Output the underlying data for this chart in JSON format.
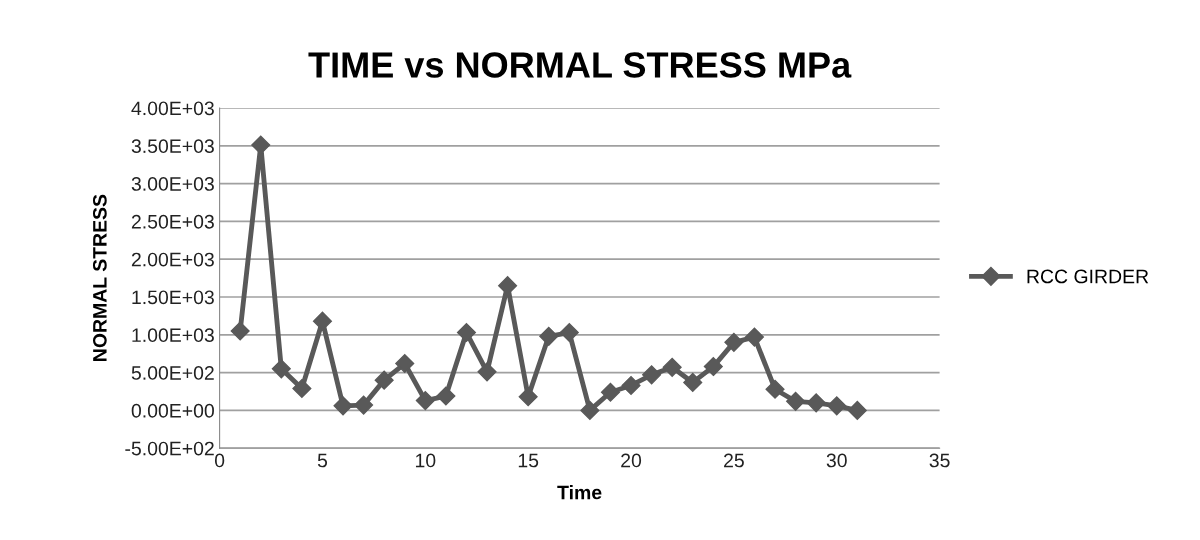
{
  "chart_data": {
    "type": "line",
    "title": "TIME vs NORMAL STRESS MPa",
    "xlabel": "Time",
    "ylabel": "NORMAL STRESS",
    "x": [
      1,
      2,
      3,
      4,
      5,
      6,
      7,
      8,
      9,
      10,
      11,
      12,
      13,
      14,
      15,
      16,
      17,
      18,
      19,
      20,
      21,
      22,
      23,
      24,
      25,
      26,
      27,
      28,
      29,
      30,
      31
    ],
    "series": [
      {
        "name": "RCC GIRDER",
        "color": "#595959",
        "values": [
          1050,
          3510,
          550,
          290,
          1180,
          60,
          70,
          400,
          620,
          130,
          190,
          1030,
          510,
          1650,
          180,
          980,
          1030,
          0,
          240,
          330,
          470,
          570,
          370,
          580,
          900,
          970,
          280,
          120,
          100,
          60,
          0
        ]
      }
    ],
    "xlim": [
      0,
      35
    ],
    "xticks": [
      0,
      5,
      10,
      15,
      20,
      25,
      30,
      35
    ],
    "ylim": [
      -500,
      4000
    ],
    "yticks": [
      {
        "value": -500,
        "label": "-5.00E+02"
      },
      {
        "value": 0,
        "label": "0.00E+00"
      },
      {
        "value": 500,
        "label": "5.00E+02"
      },
      {
        "value": 1000,
        "label": "1.00E+03"
      },
      {
        "value": 1500,
        "label": "1.50E+03"
      },
      {
        "value": 2000,
        "label": "2.00E+03"
      },
      {
        "value": 2500,
        "label": "2.50E+03"
      },
      {
        "value": 3000,
        "label": "3.00E+03"
      },
      {
        "value": 3500,
        "label": "3.50E+03"
      },
      {
        "value": 4000,
        "label": "4.00E+03"
      }
    ],
    "grid": "y",
    "legend": "right",
    "marker": "diamond",
    "line_style": "solid"
  }
}
